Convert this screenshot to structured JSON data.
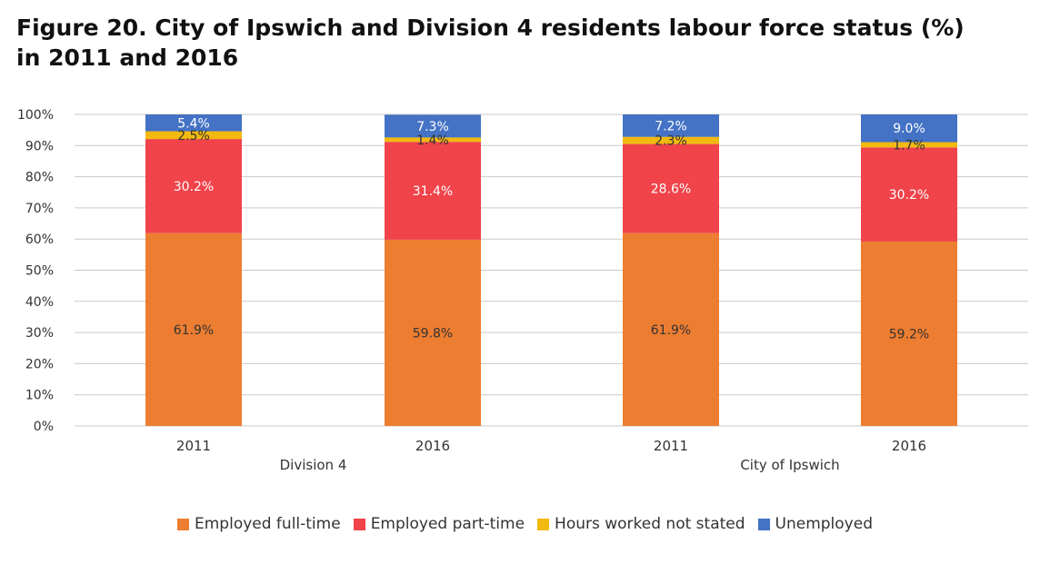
{
  "chart_data": {
    "type": "bar",
    "stacked": true,
    "title_lines": [
      "Figure 20. City of Ipswich and Division 4 residents labour force status (%)",
      "in 2011 and 2016"
    ],
    "categories": [
      "2011",
      "2016",
      "2011",
      "2016"
    ],
    "groups": [
      {
        "label": "Division 4",
        "categories": [
          0,
          1
        ]
      },
      {
        "label": "City of Ipswich",
        "categories": [
          2,
          3
        ]
      }
    ],
    "series": [
      {
        "name": "Employed full-time",
        "color": "#ED7D31",
        "values": [
          61.9,
          59.8,
          61.9,
          59.2
        ],
        "labels": [
          "61.9%",
          "59.8%",
          "61.9%",
          "59.2%"
        ],
        "label_color": "#333333"
      },
      {
        "name": "Employed part-time",
        "color": "#F0434A",
        "values": [
          30.2,
          31.4,
          28.6,
          30.2
        ],
        "labels": [
          "30.2%",
          "31.4%",
          "28.6%",
          "30.2%"
        ],
        "label_color": "#ffffff"
      },
      {
        "name": "Hours worked not stated",
        "color": "#F2B90F",
        "values": [
          2.5,
          1.4,
          2.3,
          1.7
        ],
        "labels": [
          "2.5%",
          "1.4%",
          "2.3%",
          "1.7%"
        ],
        "label_color": "#333333"
      },
      {
        "name": "Unemployed",
        "color": "#4472C4",
        "values": [
          5.4,
          7.3,
          7.2,
          9.0
        ],
        "labels": [
          "5.4%",
          "7.3%",
          "7.2%",
          "9.0%"
        ],
        "label_color": "#ffffff"
      }
    ],
    "ylim": [
      0,
      100
    ],
    "yticks": [
      0,
      10,
      20,
      30,
      40,
      50,
      60,
      70,
      80,
      90,
      100
    ],
    "ytick_labels": [
      "0%",
      "10%",
      "20%",
      "30%",
      "40%",
      "50%",
      "60%",
      "70%",
      "80%",
      "90%",
      "100%"
    ],
    "grid": true,
    "legend_position": "bottom",
    "xlabel": "",
    "ylabel": ""
  }
}
